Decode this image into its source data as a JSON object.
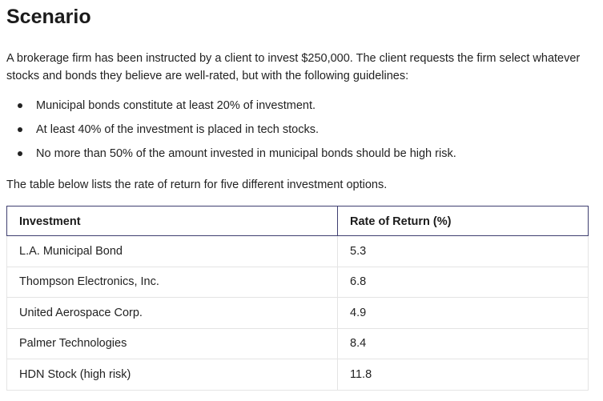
{
  "title": "Scenario",
  "intro": "A brokerage firm has been instructed by a client to invest $250,000. The client requests the firm select whatever stocks and bonds they believe are well-rated, but with the following guidelines:",
  "guidelines": [
    "Municipal bonds constitute at least 20% of investment.",
    "At least 40% of the investment is placed in tech stocks.",
    "No more than 50% of the amount invested in municipal bonds should be high risk."
  ],
  "table_intro": "The table below lists the rate of return for five different investment options.",
  "table": {
    "headers": [
      "Investment",
      "Rate of Return (%)"
    ],
    "rows": [
      [
        "L.A. Municipal Bond",
        "5.3"
      ],
      [
        "Thompson Electronics, Inc.",
        "6.8"
      ],
      [
        "United Aerospace Corp.",
        "4.9"
      ],
      [
        "Palmer Technologies",
        "8.4"
      ],
      [
        "HDN Stock (high risk)",
        "11.8"
      ]
    ]
  }
}
